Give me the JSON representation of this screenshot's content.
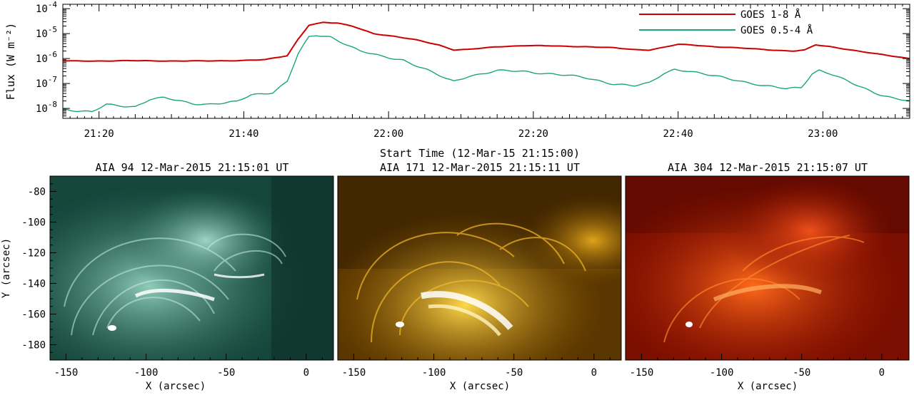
{
  "chart_data": [
    {
      "type": "line",
      "subtype": "goes-xray-flux",
      "ylabel": "Flux (W m⁻²)",
      "y_scale": "log",
      "ylim": [
        4e-09,
        0.00015
      ],
      "y_ticks": [
        {
          "value": 1e-08,
          "base": "10",
          "exp": "-8"
        },
        {
          "value": 1e-07,
          "base": "10",
          "exp": "-7"
        },
        {
          "value": 1e-06,
          "base": "10",
          "exp": "-6"
        },
        {
          "value": 1e-05,
          "base": "10",
          "exp": "-5"
        },
        {
          "value": 0.0001,
          "base": "10",
          "exp": "-4"
        }
      ],
      "xlabel": "Start Time (12-Mar-15 21:15:00)",
      "xlim_minutes": [
        0,
        117
      ],
      "x_ticks": [
        {
          "minute": 5,
          "label": "21:20"
        },
        {
          "minute": 25,
          "label": "21:40"
        },
        {
          "minute": 45,
          "label": "22:00"
        },
        {
          "minute": 65,
          "label": "22:20"
        },
        {
          "minute": 85,
          "label": "22:40"
        },
        {
          "minute": 105,
          "label": "23:00"
        }
      ],
      "legend_position": "top-right",
      "series": [
        {
          "name": "GOES 1-8 Å",
          "color": "#cc0000",
          "points": [
            [
              0,
              8e-07
            ],
            [
              5,
              8e-07
            ],
            [
              10,
              8.2e-07
            ],
            [
              15,
              8e-07
            ],
            [
              20,
              8e-07
            ],
            [
              24,
              8.3e-07
            ],
            [
              28,
              9e-07
            ],
            [
              31,
              1.3e-06
            ],
            [
              32.5,
              6e-06
            ],
            [
              34,
              2.2e-05
            ],
            [
              36,
              2.8e-05
            ],
            [
              38,
              2.6e-05
            ],
            [
              40,
              2e-05
            ],
            [
              43,
              1e-05
            ],
            [
              46,
              7.5e-06
            ],
            [
              49,
              5.5e-06
            ],
            [
              52,
              3.5e-06
            ],
            [
              54,
              2.2e-06
            ],
            [
              56,
              2.3e-06
            ],
            [
              60,
              3e-06
            ],
            [
              64,
              3.3e-06
            ],
            [
              68,
              3.2e-06
            ],
            [
              72,
              3e-06
            ],
            [
              76,
              2.7e-06
            ],
            [
              79,
              2.3e-06
            ],
            [
              81,
              2.2e-06
            ],
            [
              83,
              2.8e-06
            ],
            [
              85,
              3.7e-06
            ],
            [
              87,
              3.5e-06
            ],
            [
              90,
              3e-06
            ],
            [
              94,
              2.6e-06
            ],
            [
              98,
              2.2e-06
            ],
            [
              101,
              2e-06
            ],
            [
              102.5,
              2.2e-06
            ],
            [
              104,
              3.5e-06
            ],
            [
              106,
              3e-06
            ],
            [
              109,
              2.2e-06
            ],
            [
              112,
              1.6e-06
            ],
            [
              115,
              1.2e-06
            ],
            [
              117,
              1e-06
            ]
          ]
        },
        {
          "name": "GOES 0.5-4 Å",
          "color": "#1ba57a",
          "points": [
            [
              0,
              1e-08
            ],
            [
              2,
              8e-09
            ],
            [
              4,
              7e-09
            ],
            [
              6,
              1.4e-08
            ],
            [
              8,
              1.3e-08
            ],
            [
              10,
              1.2e-08
            ],
            [
              12,
              2.3e-08
            ],
            [
              14,
              2.6e-08
            ],
            [
              16,
              2e-08
            ],
            [
              18,
              1.6e-08
            ],
            [
              20,
              1.5e-08
            ],
            [
              22,
              1.6e-08
            ],
            [
              24,
              1.8e-08
            ],
            [
              26,
              3.5e-08
            ],
            [
              29,
              4.5e-08
            ],
            [
              31,
              1.2e-07
            ],
            [
              32.5,
              1.5e-06
            ],
            [
              34,
              7e-06
            ],
            [
              35,
              8.5e-06
            ],
            [
              37,
              7.5e-06
            ],
            [
              39,
              4e-06
            ],
            [
              41,
              2e-06
            ],
            [
              44,
              1.2e-06
            ],
            [
              47,
              9e-07
            ],
            [
              50,
              3.8e-07
            ],
            [
              53,
              1.5e-07
            ],
            [
              54,
              1.2e-07
            ],
            [
              56,
              2e-07
            ],
            [
              60,
              3.2e-07
            ],
            [
              64,
              3e-07
            ],
            [
              68,
              2.4e-07
            ],
            [
              72,
              1.7e-07
            ],
            [
              76,
              1e-07
            ],
            [
              79,
              8e-08
            ],
            [
              81,
              1e-07
            ],
            [
              83,
              2.5e-07
            ],
            [
              84.5,
              3.8e-07
            ],
            [
              86,
              3.4e-07
            ],
            [
              89,
              2.2e-07
            ],
            [
              93,
              1.4e-07
            ],
            [
              97,
              8e-08
            ],
            [
              100,
              6e-08
            ],
            [
              102,
              7e-08
            ],
            [
              103.5,
              2.5e-07
            ],
            [
              104.5,
              3.5e-07
            ],
            [
              106,
              2.5e-07
            ],
            [
              109,
              1e-07
            ],
            [
              112,
              4.5e-08
            ],
            [
              115,
              2.5e-08
            ],
            [
              117,
              2e-08
            ]
          ]
        }
      ]
    },
    {
      "type": "heatmap",
      "title": "AIA 94  12-Mar-2015 21:15:01 UT",
      "colormap": [
        "#0a3a2e",
        "#1f6a55",
        "#5fa894",
        "#d6f5ec",
        "#ffffff"
      ],
      "xlabel": "X (arcsec)",
      "ylabel": "Y (arcsec)",
      "xlim": [
        -160,
        17
      ],
      "ylim": [
        -190,
        -70
      ],
      "x_ticks": [
        -150,
        -100,
        -50,
        0
      ],
      "y_ticks": [
        -80,
        -100,
        -120,
        -140,
        -160,
        -180
      ]
    },
    {
      "type": "heatmap",
      "title": "AIA 171  12-Mar-2015 21:15:11 UT",
      "colormap": [
        "#1a0d00",
        "#6a3f00",
        "#c98a00",
        "#ffd24a",
        "#ffffff"
      ],
      "xlabel": "X (arcsec)",
      "xlim": [
        -160,
        17
      ],
      "ylim": [
        -190,
        -70
      ],
      "x_ticks": [
        -150,
        -100,
        -50,
        0
      ]
    },
    {
      "type": "heatmap",
      "title": "AIA 304  12-Mar-2015 21:15:07 UT",
      "colormap": [
        "#3a0000",
        "#8a0c00",
        "#d12a00",
        "#ff7a1a",
        "#ffffff"
      ],
      "xlabel": "X (arcsec)",
      "xlim": [
        -160,
        17
      ],
      "ylim": [
        -190,
        -70
      ],
      "x_ticks": [
        -150,
        -100,
        -50,
        0
      ]
    }
  ]
}
